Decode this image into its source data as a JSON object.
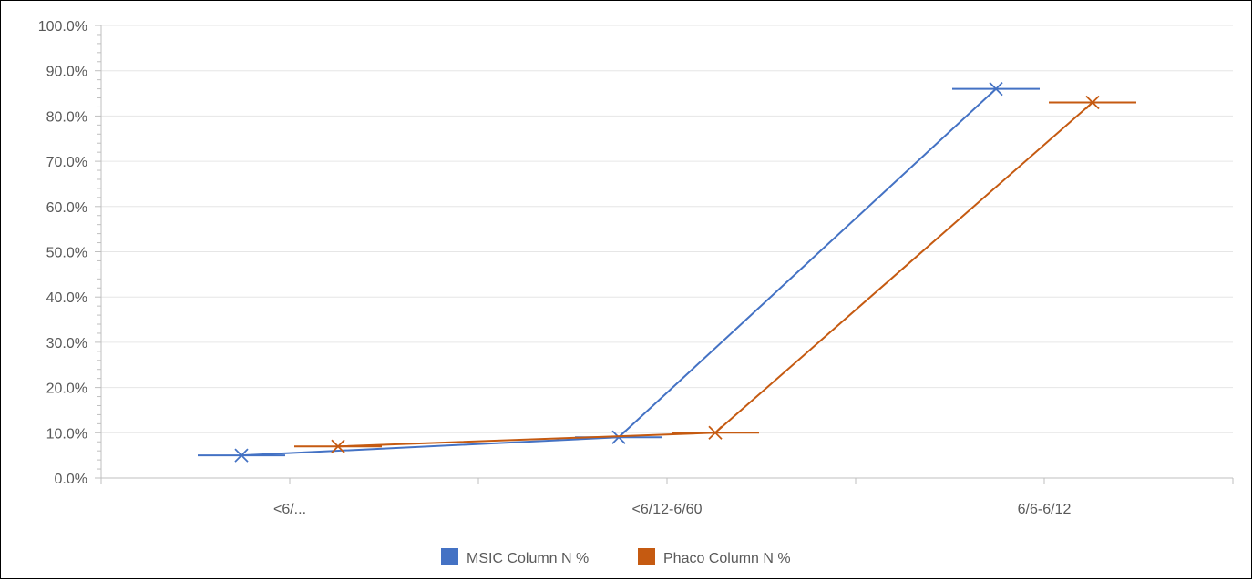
{
  "chart_data": {
    "type": "line",
    "categories": [
      "<6/...",
      "<6/12-6/60",
      "6/6-6/12"
    ],
    "series": [
      {
        "name": "MSIC Column N %",
        "values": [
          5.0,
          9.0,
          86.0
        ],
        "color": "#4472C4"
      },
      {
        "name": "Phaco Column N %",
        "values": [
          7.0,
          10.0,
          83.0
        ],
        "color": "#C55A11"
      }
    ],
    "ylim": [
      0,
      100
    ],
    "yticks": [
      "0.0%",
      "10.0%",
      "20.0%",
      "30.0%",
      "40.0%",
      "50.0%",
      "60.0%",
      "70.0%",
      "80.0%",
      "90.0%",
      "100.0%"
    ],
    "grid": true,
    "legend_position": "bottom",
    "marker": "x"
  }
}
